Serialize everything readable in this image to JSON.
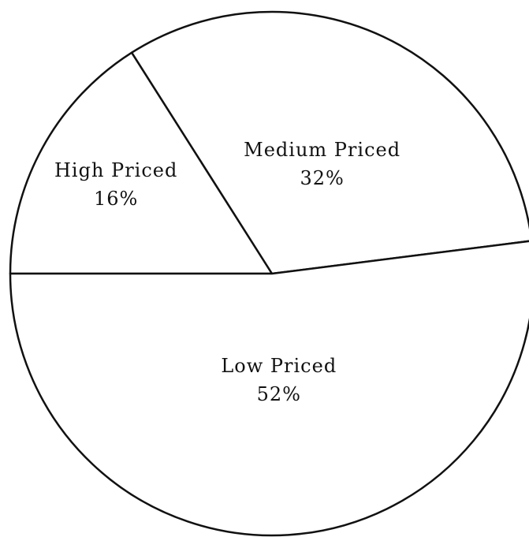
{
  "chart_data": {
    "type": "pie",
    "categories": [
      "High Priced",
      "Medium Priced",
      "Low Priced"
    ],
    "values": [
      16,
      32,
      52
    ],
    "value_labels": [
      "16%",
      "32%",
      "52%"
    ],
    "color": "#ffffff"
  }
}
